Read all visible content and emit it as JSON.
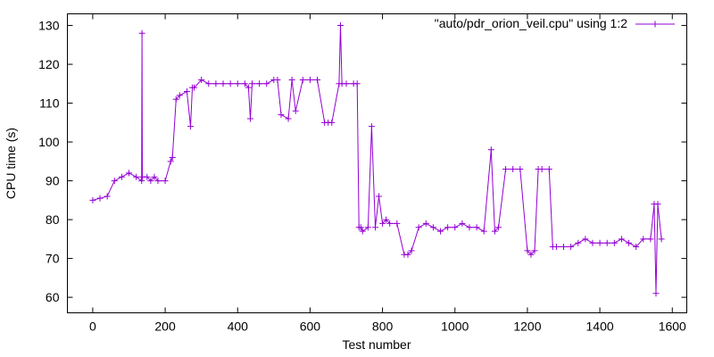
{
  "chart_data": {
    "type": "line",
    "xlabel": "Test number",
    "ylabel": "CPU time (s)",
    "xlim": [
      -70,
      1640
    ],
    "ylim": [
      56,
      133
    ],
    "xticks": [
      0,
      200,
      400,
      600,
      800,
      1000,
      1200,
      1400,
      1600
    ],
    "yticks": [
      60,
      70,
      80,
      90,
      100,
      110,
      120,
      130
    ],
    "grid": false,
    "legend_position": "top-right",
    "series": [
      {
        "name": "\"auto/pdr_orion_veil.cpu\" using 1:2",
        "color": "#9400d3",
        "marker": "plus",
        "x": [
          0,
          20,
          40,
          60,
          80,
          100,
          120,
          135,
          136,
          137,
          150,
          160,
          170,
          180,
          200,
          215,
          220,
          230,
          240,
          260,
          270,
          275,
          280,
          300,
          320,
          340,
          360,
          380,
          400,
          420,
          430,
          435,
          440,
          460,
          480,
          500,
          510,
          520,
          540,
          550,
          560,
          580,
          600,
          620,
          640,
          650,
          660,
          680,
          684,
          688,
          700,
          720,
          730,
          735,
          740,
          745,
          760,
          770,
          780,
          790,
          800,
          810,
          820,
          840,
          860,
          870,
          880,
          900,
          920,
          940,
          960,
          980,
          1000,
          1020,
          1040,
          1060,
          1080,
          1100,
          1110,
          1120,
          1140,
          1160,
          1180,
          1200,
          1210,
          1220,
          1230,
          1240,
          1260,
          1270,
          1280,
          1300,
          1320,
          1340,
          1360,
          1380,
          1400,
          1420,
          1440,
          1460,
          1480,
          1500,
          1520,
          1540,
          1550,
          1555,
          1560,
          1570
        ],
        "values": [
          85,
          85.5,
          86,
          90,
          91,
          92,
          91,
          90,
          128,
          91,
          91,
          90,
          91,
          90,
          90,
          95,
          96,
          111,
          112,
          113,
          104,
          114,
          114,
          116,
          115,
          115,
          115,
          115,
          115,
          115,
          114,
          106,
          115,
          115,
          115,
          116,
          116,
          107,
          106,
          116,
          108,
          116,
          116,
          116,
          105,
          105,
          105,
          115,
          130,
          115,
          115,
          115,
          115,
          78,
          78,
          77,
          78,
          104,
          78,
          86,
          79,
          80,
          79,
          79,
          71,
          71,
          72,
          78,
          79,
          78,
          77,
          78,
          78,
          79,
          78,
          78,
          77,
          98,
          77,
          78,
          93,
          93,
          93,
          72,
          71,
          72,
          93,
          93,
          93,
          73,
          73,
          73,
          73,
          74,
          75,
          74,
          74,
          74,
          74,
          75,
          74,
          73,
          75,
          75,
          84,
          61,
          84,
          75
        ]
      }
    ]
  }
}
